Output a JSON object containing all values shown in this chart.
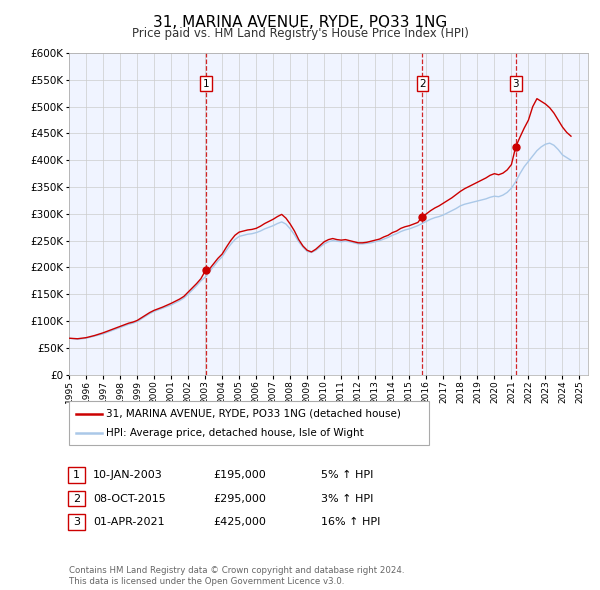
{
  "title": "31, MARINA AVENUE, RYDE, PO33 1NG",
  "subtitle": "Price paid vs. HM Land Registry's House Price Index (HPI)",
  "legend_line1": "31, MARINA AVENUE, RYDE, PO33 1NG (detached house)",
  "legend_line2": "HPI: Average price, detached house, Isle of Wight",
  "footer1": "Contains HM Land Registry data © Crown copyright and database right 2024.",
  "footer2": "This data is licensed under the Open Government Licence v3.0.",
  "sale_color": "#cc0000",
  "hpi_color": "#aac8e8",
  "vline_color": "#cc0000",
  "bg_color": "#f0f4ff",
  "ylim": [
    0,
    600000
  ],
  "yticks": [
    0,
    50000,
    100000,
    150000,
    200000,
    250000,
    300000,
    350000,
    400000,
    450000,
    500000,
    550000,
    600000
  ],
  "xlim_start": 1995.0,
  "xlim_end": 2025.5,
  "sales": [
    {
      "year": 2003.03,
      "price": 195000,
      "label": "1"
    },
    {
      "year": 2015.77,
      "price": 295000,
      "label": "2"
    },
    {
      "year": 2021.25,
      "price": 425000,
      "label": "3"
    }
  ],
  "table_rows": [
    {
      "num": "1",
      "date": "10-JAN-2003",
      "price": "£195,000",
      "pct": "5% ↑ HPI"
    },
    {
      "num": "2",
      "date": "08-OCT-2015",
      "price": "£295,000",
      "pct": "3% ↑ HPI"
    },
    {
      "num": "3",
      "date": "01-APR-2021",
      "price": "£425,000",
      "pct": "16% ↑ HPI"
    }
  ],
  "hpi_data": {
    "years": [
      1995.0,
      1995.25,
      1995.5,
      1995.75,
      1996.0,
      1996.25,
      1996.5,
      1996.75,
      1997.0,
      1997.25,
      1997.5,
      1997.75,
      1998.0,
      1998.25,
      1998.5,
      1998.75,
      1999.0,
      1999.25,
      1999.5,
      1999.75,
      2000.0,
      2000.25,
      2000.5,
      2000.75,
      2001.0,
      2001.25,
      2001.5,
      2001.75,
      2002.0,
      2002.25,
      2002.5,
      2002.75,
      2003.0,
      2003.25,
      2003.5,
      2003.75,
      2004.0,
      2004.25,
      2004.5,
      2004.75,
      2005.0,
      2005.25,
      2005.5,
      2005.75,
      2006.0,
      2006.25,
      2006.5,
      2006.75,
      2007.0,
      2007.25,
      2007.5,
      2007.75,
      2008.0,
      2008.25,
      2008.5,
      2008.75,
      2009.0,
      2009.25,
      2009.5,
      2009.75,
      2010.0,
      2010.25,
      2010.5,
      2010.75,
      2011.0,
      2011.25,
      2011.5,
      2011.75,
      2012.0,
      2012.25,
      2012.5,
      2012.75,
      2013.0,
      2013.25,
      2013.5,
      2013.75,
      2014.0,
      2014.25,
      2014.5,
      2014.75,
      2015.0,
      2015.25,
      2015.5,
      2015.75,
      2016.0,
      2016.25,
      2016.5,
      2016.75,
      2017.0,
      2017.25,
      2017.5,
      2017.75,
      2018.0,
      2018.25,
      2018.5,
      2018.75,
      2019.0,
      2019.25,
      2019.5,
      2019.75,
      2020.0,
      2020.25,
      2020.5,
      2020.75,
      2021.0,
      2021.25,
      2021.5,
      2021.75,
      2022.0,
      2022.25,
      2022.5,
      2022.75,
      2023.0,
      2023.25,
      2023.5,
      2023.75,
      2024.0,
      2024.25,
      2024.5
    ],
    "values": [
      68000,
      67000,
      66000,
      67000,
      68000,
      70000,
      72000,
      74000,
      76000,
      79000,
      82000,
      85000,
      88000,
      91000,
      94000,
      96000,
      99000,
      104000,
      109000,
      114000,
      118000,
      121000,
      124000,
      127000,
      130000,
      134000,
      138000,
      143000,
      150000,
      158000,
      166000,
      175000,
      182000,
      192000,
      202000,
      212000,
      220000,
      232000,
      243000,
      252000,
      258000,
      260000,
      262000,
      263000,
      265000,
      268000,
      272000,
      275000,
      278000,
      282000,
      285000,
      281000,
      272000,
      261000,
      248000,
      238000,
      230000,
      228000,
      232000,
      238000,
      244000,
      248000,
      250000,
      249000,
      248000,
      249000,
      248000,
      246000,
      244000,
      244000,
      245000,
      246000,
      248000,
      250000,
      253000,
      256000,
      260000,
      263000,
      267000,
      270000,
      272000,
      275000,
      278000,
      282000,
      286000,
      290000,
      293000,
      295000,
      298000,
      302000,
      306000,
      310000,
      315000,
      318000,
      320000,
      322000,
      324000,
      326000,
      328000,
      331000,
      333000,
      332000,
      335000,
      340000,
      348000,
      360000,
      375000,
      388000,
      398000,
      408000,
      418000,
      425000,
      430000,
      432000,
      428000,
      420000,
      410000,
      405000,
      400000
    ]
  },
  "sale_line_data": {
    "years": [
      1995.0,
      1995.25,
      1995.5,
      1995.75,
      1996.0,
      1996.25,
      1996.5,
      1996.75,
      1997.0,
      1997.25,
      1997.5,
      1997.75,
      1998.0,
      1998.25,
      1998.5,
      1998.75,
      1999.0,
      1999.25,
      1999.5,
      1999.75,
      2000.0,
      2000.25,
      2000.5,
      2000.75,
      2001.0,
      2001.25,
      2001.5,
      2001.75,
      2002.0,
      2002.25,
      2002.5,
      2002.75,
      2003.03,
      2003.25,
      2003.5,
      2003.75,
      2004.0,
      2004.25,
      2004.5,
      2004.75,
      2005.0,
      2005.25,
      2005.5,
      2005.75,
      2006.0,
      2006.25,
      2006.5,
      2006.75,
      2007.0,
      2007.25,
      2007.5,
      2007.75,
      2008.0,
      2008.25,
      2008.5,
      2008.75,
      2009.0,
      2009.25,
      2009.5,
      2009.75,
      2010.0,
      2010.25,
      2010.5,
      2010.75,
      2011.0,
      2011.25,
      2011.5,
      2011.75,
      2012.0,
      2012.25,
      2012.5,
      2012.75,
      2013.0,
      2013.25,
      2013.5,
      2013.75,
      2014.0,
      2014.25,
      2014.5,
      2014.75,
      2015.0,
      2015.25,
      2015.5,
      2015.77,
      2016.0,
      2016.25,
      2016.5,
      2016.75,
      2017.0,
      2017.25,
      2017.5,
      2017.75,
      2018.0,
      2018.25,
      2018.5,
      2018.75,
      2019.0,
      2019.25,
      2019.5,
      2019.75,
      2020.0,
      2020.25,
      2020.5,
      2020.75,
      2021.0,
      2021.25,
      2021.5,
      2021.75,
      2022.0,
      2022.25,
      2022.5,
      2022.75,
      2023.0,
      2023.25,
      2023.5,
      2023.75,
      2024.0,
      2024.25,
      2024.5
    ],
    "values": [
      68000,
      67500,
      67000,
      68000,
      69000,
      71000,
      73000,
      75500,
      78000,
      81000,
      84000,
      87000,
      90000,
      93000,
      96000,
      98000,
      101000,
      106000,
      111000,
      116000,
      120000,
      123000,
      126000,
      129500,
      133000,
      137000,
      141000,
      146000,
      154000,
      162000,
      170000,
      179000,
      195000,
      197000,
      207000,
      217000,
      225000,
      238000,
      250000,
      260000,
      266000,
      268000,
      270000,
      271000,
      273000,
      277000,
      282000,
      286000,
      290000,
      295000,
      299000,
      292000,
      281000,
      268000,
      252000,
      240000,
      232000,
      229000,
      234000,
      241000,
      248000,
      252000,
      254000,
      252000,
      251000,
      252000,
      250000,
      248000,
      246000,
      246000,
      247000,
      249000,
      251000,
      253000,
      257000,
      260000,
      265000,
      268000,
      273000,
      276000,
      278000,
      281000,
      284000,
      295000,
      300000,
      306000,
      311000,
      315000,
      320000,
      325000,
      330000,
      336000,
      342000,
      347000,
      351000,
      355000,
      359000,
      363000,
      367000,
      372000,
      375000,
      373000,
      376000,
      382000,
      392000,
      425000,
      443000,
      460000,
      475000,
      500000,
      515000,
      510000,
      505000,
      498000,
      488000,
      475000,
      462000,
      452000,
      445000
    ]
  }
}
